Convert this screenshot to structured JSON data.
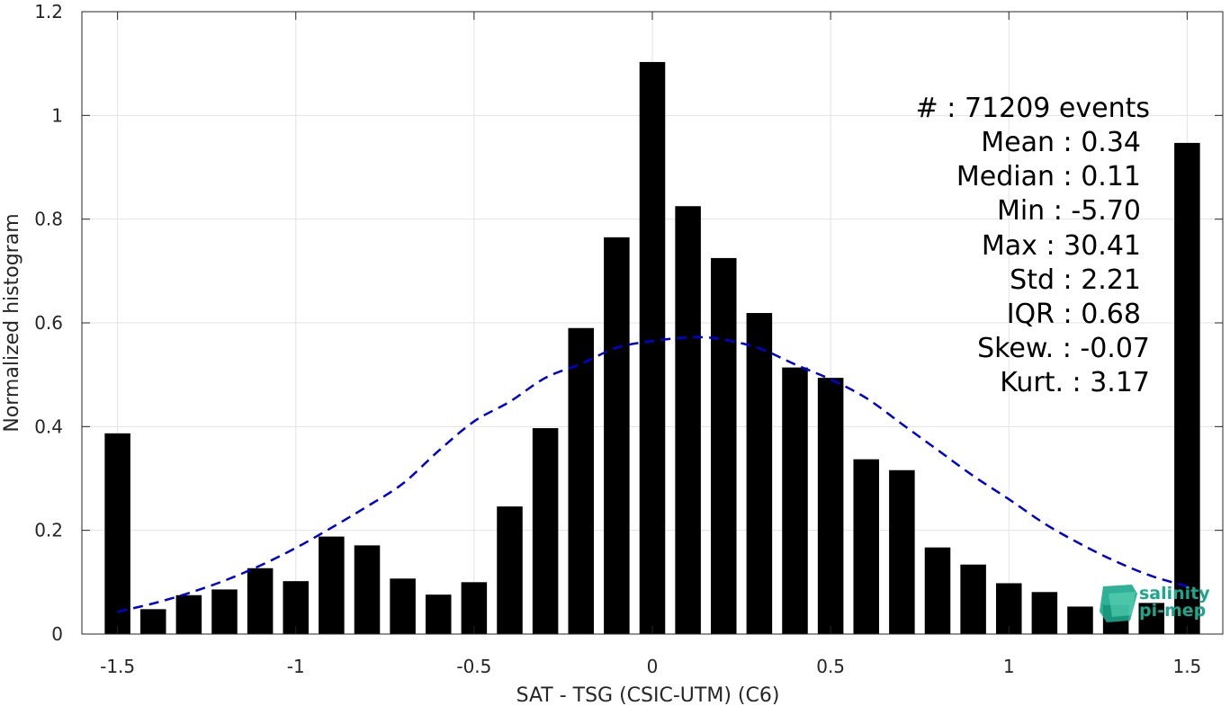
{
  "chart_data": {
    "type": "bar",
    "xlabel": "SAT - TSG (CSIC-UTM) (C6)",
    "ylabel": "Normalized histogram",
    "xlim": [
      -1.6,
      1.6
    ],
    "ylim": [
      0,
      1.2
    ],
    "xticks": [
      -1.5,
      -1,
      -0.5,
      0,
      0.5,
      1,
      1.5
    ],
    "xtick_labels": [
      "-1.5",
      "-1",
      "-0.5",
      "0",
      "0.5",
      "1",
      "1.5"
    ],
    "yticks": [
      0,
      0.2,
      0.4,
      0.6,
      0.8,
      1.0,
      1.2
    ],
    "ytick_labels": [
      "0",
      "0.2",
      "0.4",
      "0.6",
      "0.8",
      "1",
      "1.2"
    ],
    "grid": true,
    "bin_width": 0.1,
    "bar_color": "#000000",
    "bars": {
      "x": [
        -1.5,
        -1.4,
        -1.3,
        -1.2,
        -1.1,
        -1.0,
        -0.9,
        -0.8,
        -0.7,
        -0.6,
        -0.5,
        -0.4,
        -0.3,
        -0.2,
        -0.1,
        0.0,
        0.1,
        0.2,
        0.3,
        0.4,
        0.5,
        0.6,
        0.7,
        0.8,
        0.9,
        1.0,
        1.1,
        1.2,
        1.3,
        1.4,
        1.5
      ],
      "values": [
        0.387,
        0.048,
        0.075,
        0.086,
        0.127,
        0.102,
        0.188,
        0.171,
        0.107,
        0.076,
        0.1,
        0.246,
        0.397,
        0.59,
        0.765,
        1.103,
        0.825,
        0.725,
        0.619,
        0.514,
        0.494,
        0.337,
        0.316,
        0.167,
        0.134,
        0.098,
        0.081,
        0.053,
        0.056,
        0.06,
        0.947
      ]
    },
    "fit_curve": {
      "style": "dashed",
      "color": "#0000dd",
      "x": [
        -1.5,
        -1.4,
        -1.3,
        -1.2,
        -1.1,
        -1.0,
        -0.9,
        -0.8,
        -0.7,
        -0.6,
        -0.5,
        -0.4,
        -0.3,
        -0.2,
        -0.1,
        0.0,
        0.1,
        0.15,
        0.2,
        0.3,
        0.4,
        0.5,
        0.6,
        0.7,
        0.8,
        0.9,
        1.0,
        1.1,
        1.2,
        1.3,
        1.4,
        1.5
      ],
      "values": [
        0.043,
        0.059,
        0.079,
        0.103,
        0.132,
        0.166,
        0.205,
        0.246,
        0.29,
        0.353,
        0.41,
        0.448,
        0.494,
        0.521,
        0.552,
        0.565,
        0.572,
        0.572,
        0.568,
        0.551,
        0.52,
        0.491,
        0.455,
        0.405,
        0.355,
        0.305,
        0.26,
        0.213,
        0.174,
        0.14,
        0.112,
        0.092
      ]
    },
    "stats": [
      "#  : 71209 events",
      "Mean : 0.34",
      "Median : 0.11",
      "Min : -5.70",
      "Max : 30.41",
      "Std : 2.21",
      "IQR : 0.68",
      "Skew. : -0.07",
      "Kurt. : 3.17"
    ]
  },
  "logo": {
    "line1": "salinity",
    "line2": "pi-mep",
    "color": "#1aa88c"
  }
}
